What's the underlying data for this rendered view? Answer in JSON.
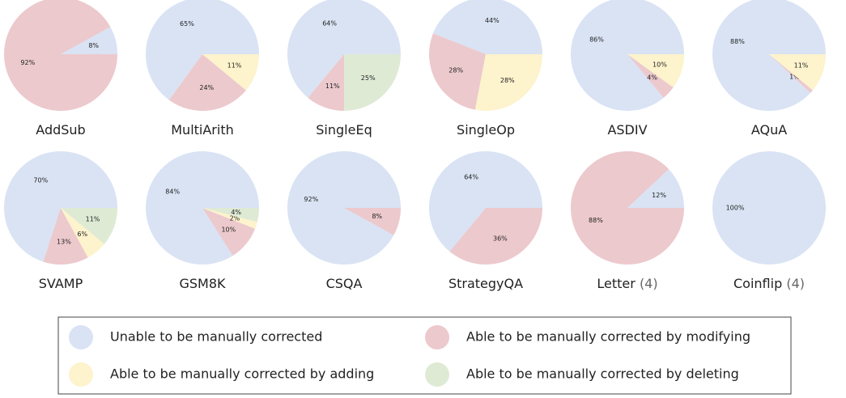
{
  "chart_data": [
    {
      "type": "pie",
      "title": "AddSub",
      "values": [
        8,
        92
      ],
      "value_labels": [
        "8%",
        "92%"
      ],
      "colors": [
        "#d9e3f4",
        "#ecc9cd"
      ]
    },
    {
      "type": "pie",
      "title": "MultiArith",
      "values": [
        65,
        24,
        11
      ],
      "value_labels": [
        "65%",
        "24%",
        "11%"
      ],
      "colors": [
        "#d9e3f4",
        "#ecc9cd",
        "#fdf3cc"
      ]
    },
    {
      "type": "pie",
      "title": "SingleEq",
      "values": [
        64,
        11,
        25
      ],
      "value_labels": [
        "64%",
        "11%",
        "25%"
      ],
      "colors": [
        "#d9e3f4",
        "#ecc9cd",
        "#dfead5"
      ]
    },
    {
      "type": "pie",
      "title": "SingleOp",
      "values": [
        44,
        28,
        28
      ],
      "value_labels": [
        "44%",
        "28%",
        "28%"
      ],
      "colors": [
        "#d9e3f4",
        "#ecc9cd",
        "#fdf3cc"
      ]
    },
    {
      "type": "pie",
      "title": "ASDIV",
      "values": [
        86,
        4,
        10
      ],
      "value_labels": [
        "86%",
        "4%",
        "10%"
      ],
      "colors": [
        "#d9e3f4",
        "#ecc9cd",
        "#fdf3cc"
      ]
    },
    {
      "type": "pie",
      "title": "AQuA",
      "values": [
        88,
        1,
        11
      ],
      "value_labels": [
        "88%",
        "1%",
        "11%"
      ],
      "colors": [
        "#d9e3f4",
        "#ecc9cd",
        "#fdf3cc"
      ]
    },
    {
      "type": "pie",
      "title": "SVAMP",
      "values": [
        70,
        13,
        6,
        11
      ],
      "value_labels": [
        "70%",
        "13%",
        "6%",
        "11%"
      ],
      "colors": [
        "#d9e3f4",
        "#ecc9cd",
        "#fdf3cc",
        "#dfead5"
      ]
    },
    {
      "type": "pie",
      "title": "GSM8K",
      "values": [
        84,
        10,
        2,
        4
      ],
      "value_labels": [
        "84%",
        "10%",
        "2%",
        "4%"
      ],
      "colors": [
        "#d9e3f4",
        "#ecc9cd",
        "#fdf3cc",
        "#dfead5"
      ]
    },
    {
      "type": "pie",
      "title": "CSQA",
      "values": [
        92,
        8
      ],
      "value_labels": [
        "92%",
        "8%"
      ],
      "colors": [
        "#d9e3f4",
        "#ecc9cd"
      ]
    },
    {
      "type": "pie",
      "title": "StrategyQA",
      "values": [
        64,
        36
      ],
      "value_labels": [
        "64%",
        "36%"
      ],
      "colors": [
        "#d9e3f4",
        "#ecc9cd"
      ]
    },
    {
      "type": "pie",
      "title": "Letter",
      "title_note": "(4)",
      "values": [
        12,
        88
      ],
      "value_labels": [
        "12%",
        "88%"
      ],
      "colors": [
        "#d9e3f4",
        "#ecc9cd"
      ]
    },
    {
      "type": "pie",
      "title": "Coinflip",
      "title_note": "(4)",
      "values": [
        100
      ],
      "value_labels": [
        "100%"
      ],
      "colors": [
        "#d9e3f4"
      ]
    }
  ],
  "legend": [
    {
      "name": "Unable to be manually corrected",
      "color": "#d9e3f4"
    },
    {
      "name": "Able to be manually corrected by modifying",
      "color": "#ecc9cd"
    },
    {
      "name": "Able to be manually corrected by adding",
      "color": "#fdf3cc"
    },
    {
      "name": "Able to be manually corrected by deleting",
      "color": "#dfead5"
    }
  ]
}
